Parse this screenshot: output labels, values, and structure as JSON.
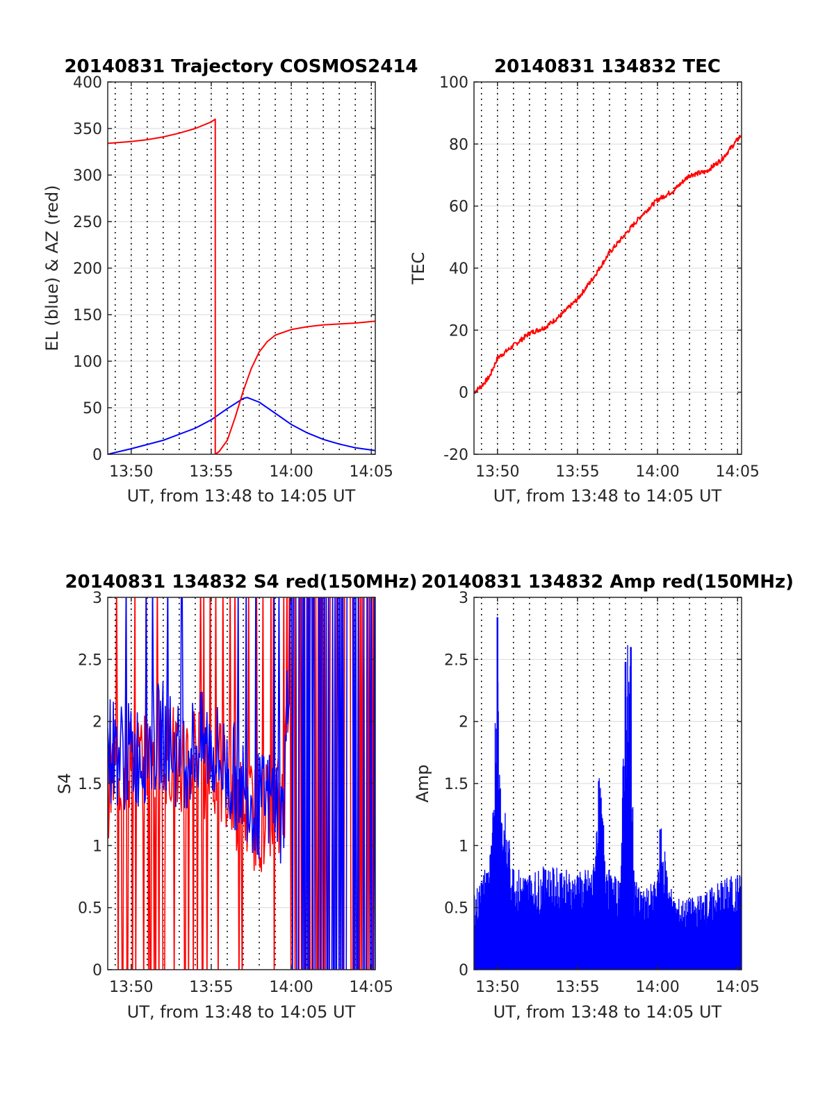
{
  "figure": {
    "colors": {
      "el": "#0000ff",
      "az": "#ff0000",
      "grid": "#d9d9d9",
      "vline": "#000000",
      "axis": "#262626"
    }
  },
  "chart_data": [
    {
      "id": "traj",
      "type": "line",
      "title": "20140831 Trajectory COSMOS2414",
      "xlabel": "UT, from 13:48 to 14:05 UT",
      "ylabel": "EL (blue) & AZ (red)",
      "xlim": [
        "13:48:32",
        "14:05:15"
      ],
      "ylim": [
        0,
        400
      ],
      "xticks": [
        "13:50",
        "13:55",
        "14:00",
        "14:05"
      ],
      "yticks": [
        "0",
        "50",
        "100",
        "150",
        "200",
        "250",
        "300",
        "350",
        "400"
      ],
      "grid": true,
      "series": [
        {
          "color": "#0000ff",
          "x": [
            "13:48:32",
            "13:50:00",
            "13:52:00",
            "13:54:00",
            "13:55:00",
            "13:56:00",
            "13:57:00",
            "13:57:15",
            "13:58:00",
            "13:59:00",
            "14:00:00",
            "14:01:00",
            "14:02:00",
            "14:03:00",
            "14:04:00",
            "14:05:15"
          ],
          "y": [
            0,
            6,
            15,
            28,
            37,
            49,
            60,
            61,
            56,
            44,
            32,
            23,
            16,
            11,
            7,
            4
          ]
        },
        {
          "color": "#ff0000",
          "x": [
            "13:48:32",
            "13:50:00",
            "13:51:00",
            "13:52:00",
            "13:53:00",
            "13:54:00",
            "13:55:00",
            "13:55:15",
            "13:55:15",
            "13:55:30",
            "13:56:00",
            "13:56:30",
            "13:57:00",
            "13:57:30",
            "13:58:00",
            "13:58:30",
            "13:59:00",
            "14:00:00",
            "14:01:00",
            "14:02:00",
            "14:03:00",
            "14:04:00",
            "14:05:15"
          ],
          "y": [
            334,
            336,
            338,
            341,
            345,
            350,
            357,
            360,
            0,
            3,
            15,
            40,
            68,
            92,
            110,
            121,
            128,
            134,
            137,
            139,
            140,
            141,
            143
          ]
        }
      ]
    },
    {
      "id": "tec",
      "type": "line",
      "title": "20140831 134832 TEC",
      "xlabel": "UT, from 13:48 to 14:05 UT",
      "ylabel": "TEC",
      "xlim": [
        "13:48:32",
        "14:05:15"
      ],
      "ylim": [
        -20,
        100
      ],
      "xticks": [
        "13:50",
        "13:55",
        "14:00",
        "14:05"
      ],
      "yticks": [
        "-20",
        "0",
        "20",
        "40",
        "60",
        "80",
        "100"
      ],
      "grid": true,
      "series": [
        {
          "color": "#ff0000",
          "x": [
            "13:48:32",
            "13:49:00",
            "13:49:30",
            "13:50:00",
            "13:51:00",
            "13:52:00",
            "13:53:00",
            "13:54:00",
            "13:55:00",
            "13:56:00",
            "13:57:00",
            "13:58:00",
            "13:59:00",
            "14:00:00",
            "14:01:00",
            "14:02:00",
            "14:03:00",
            "14:04:00",
            "14:05:15"
          ],
          "y": [
            0,
            2,
            5,
            11,
            15,
            19,
            21,
            25,
            30,
            37,
            45,
            51,
            57,
            62,
            65,
            70,
            71,
            75,
            83
          ]
        }
      ]
    },
    {
      "id": "s4",
      "type": "line",
      "title": "20140831 134832 S4 red(150MHz)",
      "xlabel": "UT, from 13:48 to 14:05 UT",
      "ylabel": "S4",
      "xlim": [
        "13:48:32",
        "14:05:15"
      ],
      "ylim": [
        0,
        3
      ],
      "xticks": [
        "13:50",
        "13:55",
        "14:00",
        "14:05"
      ],
      "yticks": [
        "0",
        "0.5",
        "1",
        "1.5",
        "2",
        "2.5",
        "3"
      ],
      "grid": true,
      "series": [
        {
          "color": "#ff0000",
          "x": [
            "13:48:32",
            "13:50:00",
            "13:51:00",
            "13:52:00",
            "13:53:00",
            "13:54:00",
            "13:55:00",
            "13:56:00",
            "13:57:00",
            "13:58:00",
            "13:59:00",
            "13:59:30",
            "14:00:00",
            "14:02:00",
            "14:04:00",
            "14:05:15"
          ],
          "y": [
            1.5,
            1.7,
            1.6,
            1.8,
            1.7,
            1.7,
            1.6,
            1.5,
            1.3,
            1.2,
            1.4,
            1.2,
            3,
            3,
            3,
            3
          ]
        },
        {
          "color": "#0000ff",
          "x": [
            "13:48:32",
            "13:50:00",
            "13:51:00",
            "13:52:00",
            "13:53:00",
            "13:54:00",
            "13:55:00",
            "13:56:00",
            "13:57:00",
            "13:58:00",
            "13:59:00",
            "13:59:30",
            "14:00:00",
            "14:02:00",
            "14:04:00",
            "14:05:15"
          ],
          "y": [
            1.8,
            1.7,
            1.8,
            1.9,
            1.7,
            1.8,
            1.8,
            1.6,
            1.5,
            1.3,
            1.4,
            1.2,
            3,
            3,
            3,
            3
          ]
        }
      ]
    },
    {
      "id": "amp",
      "type": "line",
      "title": "20140831 134832 Amp red(150MHz)",
      "xlabel": "UT, from 13:48 to 14:05 UT",
      "ylabel": "Amp",
      "xlim": [
        "13:48:32",
        "14:05:15"
      ],
      "ylim": [
        0,
        3
      ],
      "xticks": [
        "13:50",
        "13:55",
        "14:00",
        "14:05"
      ],
      "yticks": [
        "0",
        "0.5",
        "1",
        "1.5",
        "2",
        "2.5",
        "3"
      ],
      "grid": true,
      "series": [
        {
          "color": "#0000ff",
          "x": [
            "13:48:32",
            "13:49:00",
            "13:49:40",
            "13:50:00",
            "13:50:10",
            "13:51:00",
            "13:52:00",
            "13:53:00",
            "13:54:00",
            "13:55:00",
            "13:56:00",
            "13:56:20",
            "13:57:00",
            "13:57:40",
            "13:58:00",
            "13:58:20",
            "13:58:30",
            "13:59:00",
            "14:00:00",
            "14:00:10",
            "14:01:00",
            "14:02:00",
            "14:03:00",
            "14:04:00",
            "14:05:15"
          ],
          "y": [
            0.6,
            0.7,
            1.0,
            2.84,
            1.46,
            0.8,
            0.75,
            0.8,
            0.78,
            0.75,
            0.8,
            1.52,
            0.75,
            0.7,
            2.48,
            2.6,
            0.8,
            0.6,
            0.7,
            1.13,
            0.55,
            0.55,
            0.6,
            0.7,
            0.75
          ]
        }
      ]
    }
  ]
}
